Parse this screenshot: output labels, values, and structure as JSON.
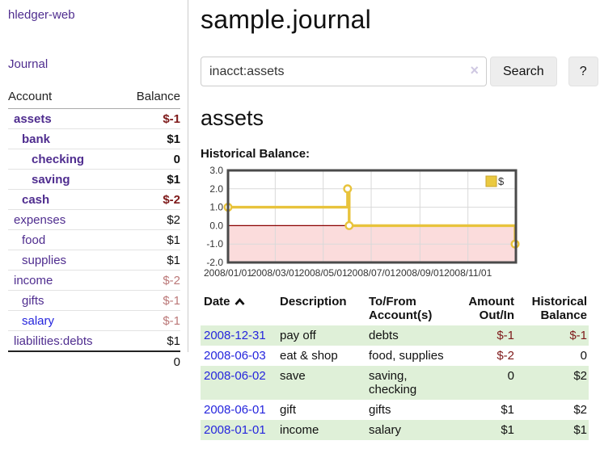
{
  "app": {
    "brand": "hledger-web",
    "nav_journal": "Journal"
  },
  "sidebar": {
    "header": {
      "account": "Account",
      "balance": "Balance"
    },
    "accounts": [
      {
        "name": "assets",
        "indent": 1,
        "bold": true,
        "color": "purple",
        "balance": "$-1",
        "balance_style": "negative"
      },
      {
        "name": "bank",
        "indent": 2,
        "bold": true,
        "color": "purple",
        "balance": "$1",
        "balance_style": "normal"
      },
      {
        "name": "checking",
        "indent": 3,
        "bold": true,
        "color": "purple",
        "balance": "0",
        "balance_style": "normal"
      },
      {
        "name": "saving",
        "indent": 3,
        "bold": true,
        "color": "purple",
        "balance": "$1",
        "balance_style": "normal"
      },
      {
        "name": "cash",
        "indent": 2,
        "bold": true,
        "color": "purple",
        "balance": "$-2",
        "balance_style": "negative"
      },
      {
        "name": "expenses",
        "indent": 1,
        "bold": false,
        "color": "purple",
        "balance": "$2",
        "balance_style": "normal"
      },
      {
        "name": "food",
        "indent": 2,
        "bold": false,
        "color": "purple",
        "balance": "$1",
        "balance_style": "normal"
      },
      {
        "name": "supplies",
        "indent": 2,
        "bold": false,
        "color": "purple",
        "balance": "$1",
        "balance_style": "normal"
      },
      {
        "name": "income",
        "indent": 1,
        "bold": false,
        "color": "purple",
        "balance": "$-2",
        "balance_style": "faded"
      },
      {
        "name": "gifts",
        "indent": 2,
        "bold": false,
        "color": "purple",
        "balance": "$-1",
        "balance_style": "faded"
      },
      {
        "name": "salary",
        "indent": 2,
        "bold": false,
        "color": "blue",
        "balance": "$-1",
        "balance_style": "faded"
      },
      {
        "name": "liabilities:debts",
        "indent": 1,
        "bold": false,
        "color": "purple",
        "balance": "$1",
        "balance_style": "normal"
      }
    ],
    "total": "0"
  },
  "header": {
    "title": "sample.journal"
  },
  "search": {
    "value": "inacct:assets",
    "clear_icon": "×",
    "button_label": "Search",
    "help_label": "?"
  },
  "account_page": {
    "heading": "assets",
    "chart_label": "Historical Balance:"
  },
  "chart_data": {
    "type": "line",
    "subtype": "step-after",
    "title": "Historical Balance:",
    "series": [
      {
        "name": "$",
        "points": [
          [
            "2008-01-01",
            1.0
          ],
          [
            "2008-06-01",
            2.0
          ],
          [
            "2008-06-03",
            0.0
          ],
          [
            "2008-12-31",
            -1.0
          ]
        ]
      }
    ],
    "x_domain": [
      "2008-01-01",
      "2009-01-01"
    ],
    "x_ticks": [
      "2008/01/01",
      "2008/03/01",
      "2008/05/01",
      "2008/07/01",
      "2008/09/01",
      "2008/11/01"
    ],
    "y_ticks": [
      3.0,
      2.0,
      1.0,
      0.0,
      -1.0,
      -2.0
    ],
    "ylim": [
      -2.0,
      3.0
    ],
    "grid": true,
    "legend": {
      "label": "$",
      "position": "top-right"
    },
    "colors": {
      "line": "#e8c33c",
      "marker_fill": "#ffffff",
      "negative_fill": "#fbdcdc",
      "zero_line": "#8b0000",
      "grid": "#d9d9d9",
      "border": "#4a4a4a",
      "legend_fill": "#eac940",
      "legend_border": "#c9a52f",
      "tick_text": "#333333"
    }
  },
  "register": {
    "columns": {
      "date": "Date",
      "description": "Description",
      "tofrom_line1": "To/From",
      "tofrom_line2": "Account(s)",
      "amount_line1": "Amount",
      "amount_line2": "Out/In",
      "balance_line1": "Historical",
      "balance_line2": "Balance"
    },
    "sort_icon": "chevron-up",
    "rows": [
      {
        "date": "2008-12-31",
        "description": "pay off",
        "accounts": "debts",
        "amount": "$-1",
        "balance": "$-1"
      },
      {
        "date": "2008-06-03",
        "description": "eat & shop",
        "accounts": "food, supplies",
        "amount": "$-2",
        "balance": "0"
      },
      {
        "date": "2008-06-02",
        "description": "save",
        "accounts": "saving,\nchecking",
        "amount": "0",
        "balance": "$2"
      },
      {
        "date": "2008-06-01",
        "description": "gift",
        "accounts": "gifts",
        "amount": "$1",
        "balance": "$2"
      },
      {
        "date": "2008-01-01",
        "description": "income",
        "accounts": "salary",
        "amount": "$1",
        "balance": "$1"
      }
    ]
  },
  "colors": {
    "accent_purple": "#4f2d8f",
    "link_blue": "#2525dd",
    "negative_red": "#7e1a1a",
    "faded_red": "#bb7878",
    "row_green": "#dff0d8"
  }
}
